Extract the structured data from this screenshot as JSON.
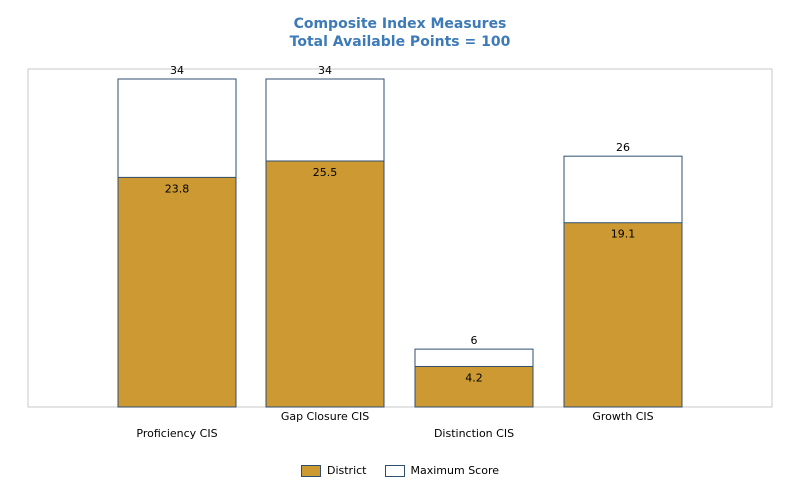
{
  "chart_data": {
    "type": "bar",
    "title": "Composite Index Measures",
    "subtitle": "Total Available Points = 100",
    "categories": [
      "Proficiency CIS",
      "Gap Closure CIS",
      "Distinction CIS",
      "Growth CIS"
    ],
    "series": [
      {
        "name": "District",
        "values": [
          23.8,
          25.5,
          4.2,
          19.1
        ],
        "color": "#cc9933"
      },
      {
        "name": "Maximum Score",
        "values": [
          34,
          34,
          6,
          26
        ],
        "color": "#ffffff"
      }
    ],
    "ylim": [
      0,
      34
    ],
    "bar_outline": "#2f4f6f",
    "grid": false,
    "legend_position": "bottom"
  }
}
